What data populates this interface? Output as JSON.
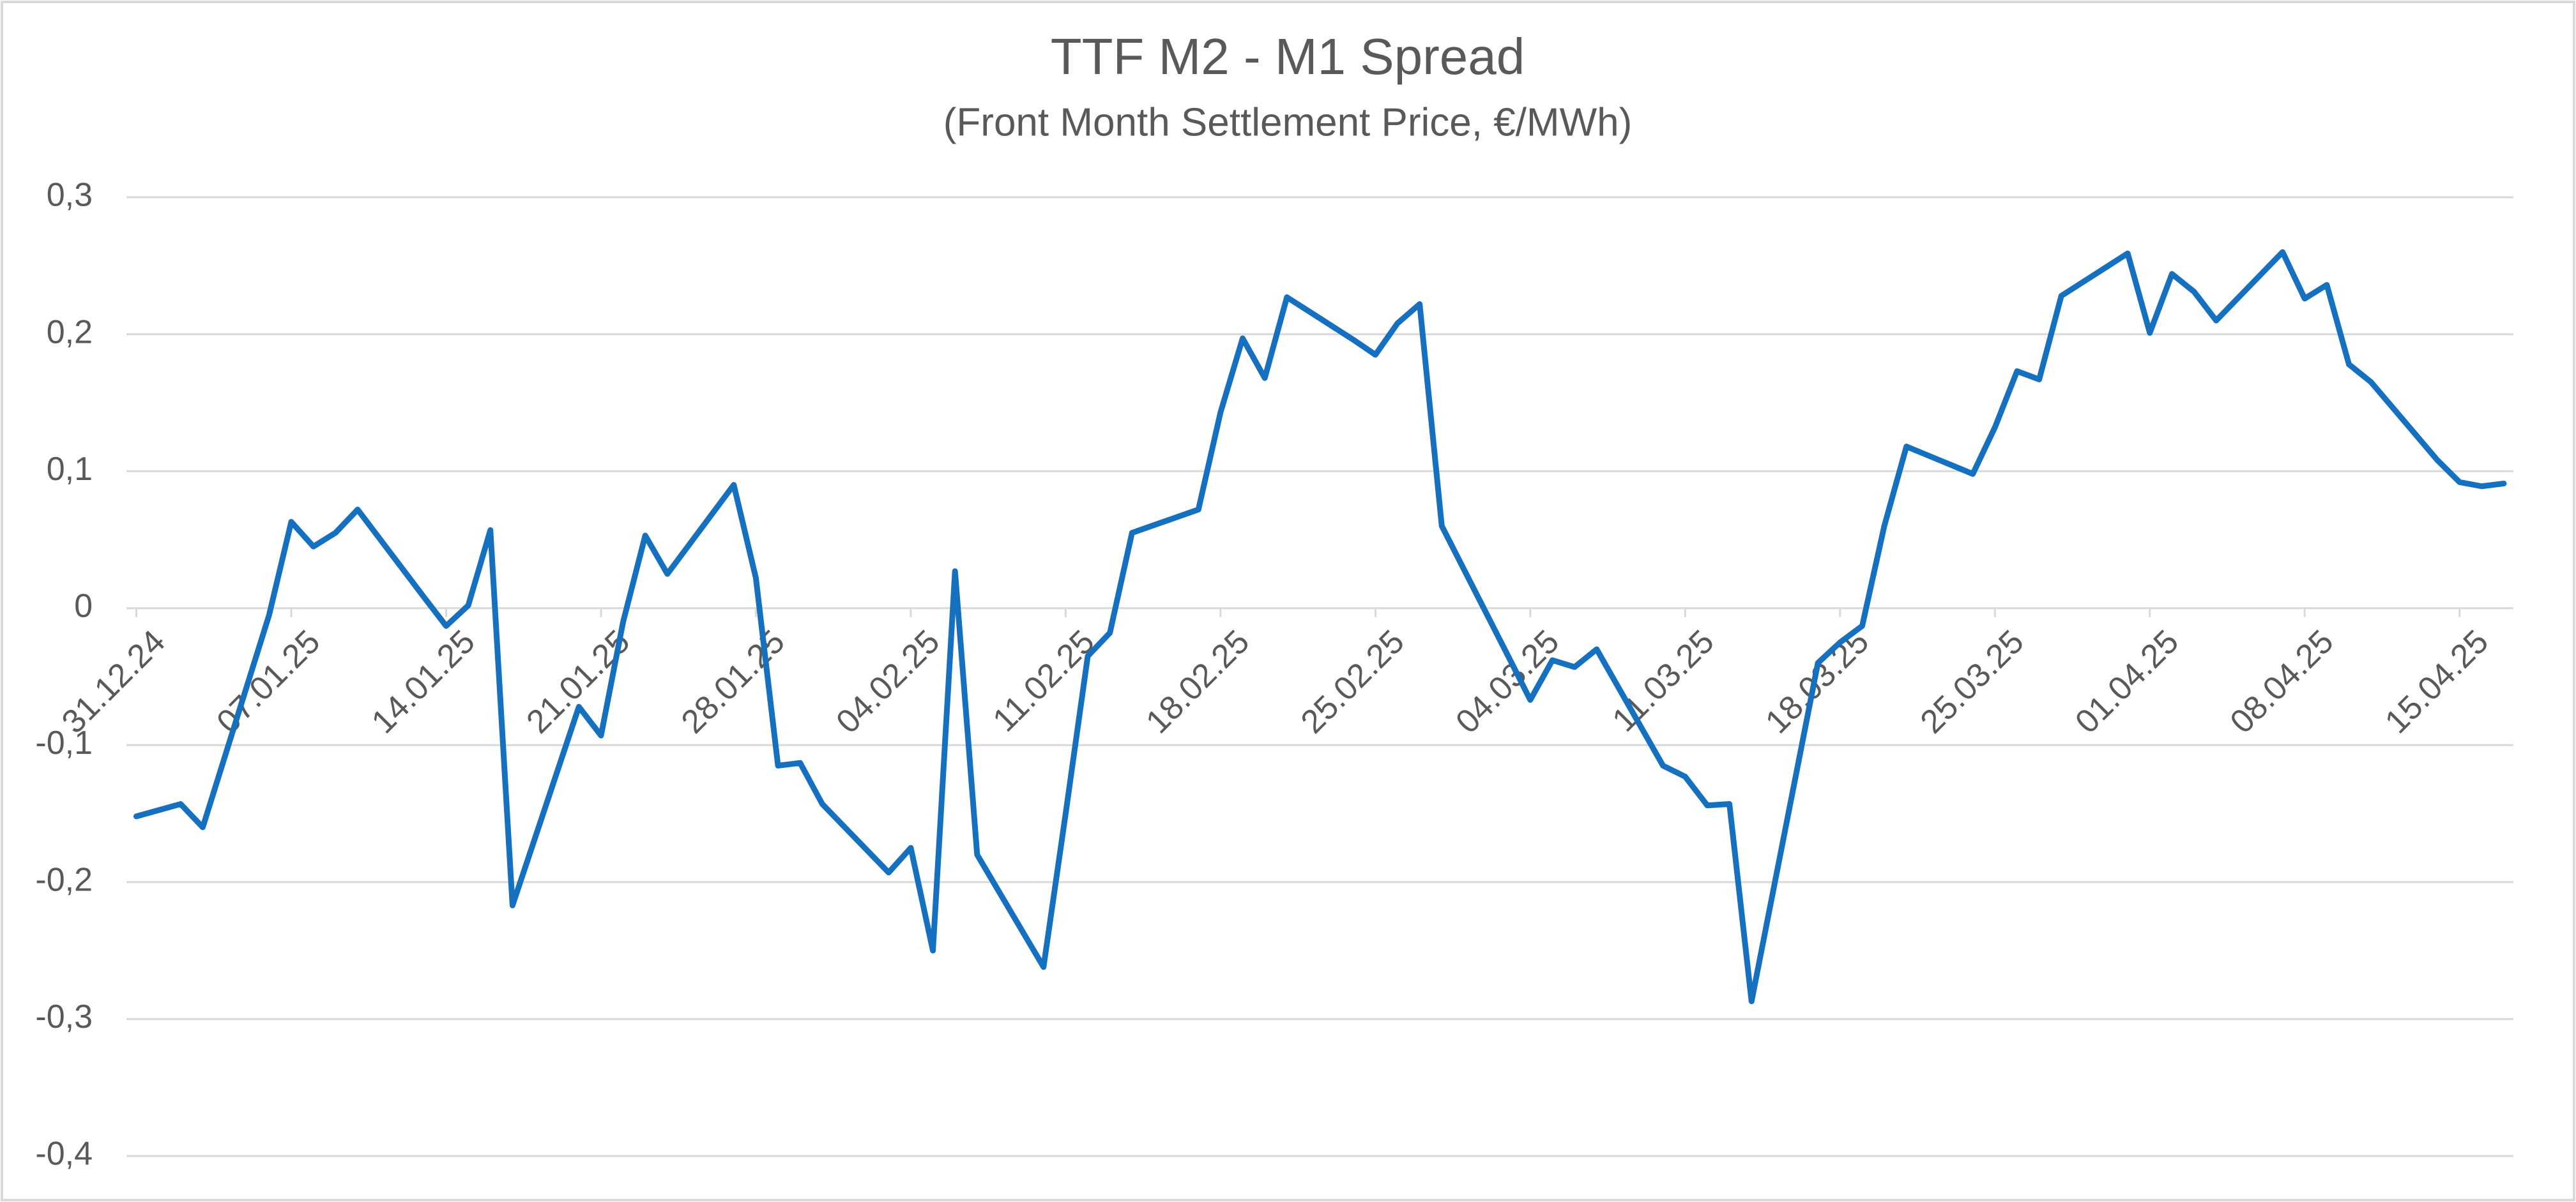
{
  "chart_data": {
    "type": "line",
    "title": "TTF M2 - M1 Spread",
    "subtitle": "(Front Month Settlement Price, €/MWh)",
    "x": [
      "31.12.24",
      "02.01.25",
      "03.01.25",
      "06.01.25",
      "07.01.25",
      "08.01.25",
      "09.01.25",
      "10.01.25",
      "13.01.25",
      "14.01.25",
      "15.01.25",
      "16.01.25",
      "17.01.25",
      "20.01.25",
      "21.01.25",
      "22.01.25",
      "23.01.25",
      "24.01.25",
      "27.01.25",
      "28.01.25",
      "29.01.25",
      "30.01.25",
      "31.01.25",
      "03.02.25",
      "04.02.25",
      "05.02.25",
      "06.02.25",
      "07.02.25",
      "10.02.25",
      "11.02.25",
      "12.02.25",
      "13.02.25",
      "14.02.25",
      "17.02.25",
      "18.02.25",
      "19.02.25",
      "20.02.25",
      "21.02.25",
      "24.02.25",
      "25.02.25",
      "26.02.25",
      "27.02.25",
      "28.02.25",
      "03.03.25",
      "04.03.25",
      "05.03.25",
      "06.03.25",
      "07.03.25",
      "10.03.25",
      "11.03.25",
      "12.03.25",
      "13.03.25",
      "14.03.25",
      "17.03.25",
      "18.03.25",
      "19.03.25",
      "20.03.25",
      "21.03.25",
      "24.03.25",
      "25.03.25",
      "26.03.25",
      "27.03.25",
      "28.03.25",
      "31.03.25",
      "01.04.25",
      "02.04.25",
      "03.04.25",
      "04.04.25",
      "07.04.25",
      "08.04.25",
      "09.04.25",
      "10.04.25",
      "11.04.25",
      "14.04.25",
      "15.04.25",
      "16.04.25",
      "17.04.25"
    ],
    "series": [
      {
        "name": "TTF M2 - M1 Spread",
        "color": "#1570c0",
        "values": [
          -0.152,
          -0.143,
          -0.16,
          -0.005,
          0.063,
          0.045,
          0.055,
          0.072,
          0.008,
          -0.013,
          0.002,
          0.057,
          -0.217,
          -0.072,
          -0.093,
          -0.01,
          0.053,
          0.025,
          0.09,
          0.022,
          -0.115,
          -0.113,
          -0.143,
          -0.193,
          -0.175,
          -0.25,
          0.027,
          -0.18,
          -0.262,
          -0.15,
          -0.035,
          -0.018,
          0.055,
          0.072,
          0.143,
          0.197,
          0.168,
          0.227,
          0.196,
          0.185,
          0.208,
          0.222,
          0.06,
          -0.035,
          -0.067,
          -0.038,
          -0.043,
          -0.03,
          -0.115,
          -0.123,
          -0.144,
          -0.143,
          -0.287,
          -0.04,
          -0.025,
          -0.013,
          0.06,
          0.118,
          0.098,
          0.132,
          0.173,
          0.167,
          0.228,
          0.259,
          0.201,
          0.244,
          0.231,
          0.21,
          0.26,
          0.226,
          0.236,
          0.178,
          0.165,
          0.108,
          0.092,
          0.089,
          0.091
        ]
      }
    ],
    "xlim": [
      "31.12.24",
      "17.04.25"
    ],
    "xticks": [
      "31.12.24",
      "07.01.25",
      "14.01.25",
      "21.01.25",
      "28.01.25",
      "04.02.25",
      "11.02.25",
      "18.02.25",
      "25.02.25",
      "04.03.25",
      "11.03.25",
      "18.03.25",
      "25.03.25",
      "01.04.25",
      "08.04.25",
      "15.04.25"
    ],
    "ylim": [
      -0.4,
      0.3
    ],
    "yticks": [
      {
        "value": -0.4,
        "label": "-0,4"
      },
      {
        "value": -0.3,
        "label": "-0,3"
      },
      {
        "value": -0.2,
        "label": "-0,2"
      },
      {
        "value": -0.1,
        "label": "-0,1"
      },
      0,
      {
        "value": 0.1,
        "label": "0,1"
      },
      {
        "value": 0.2,
        "label": "0,2"
      },
      {
        "value": 0.3,
        "label": "0,3"
      }
    ],
    "grid": true
  }
}
